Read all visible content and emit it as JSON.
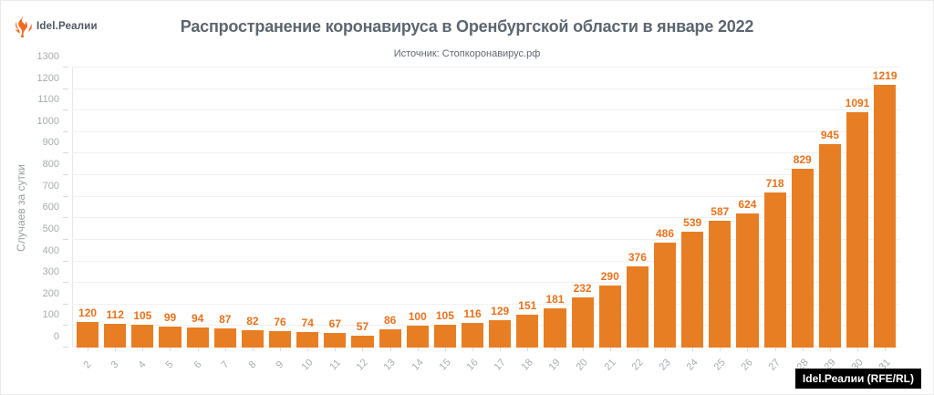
{
  "logo": {
    "text": "Idel.Реалии"
  },
  "header": {
    "title": "Распространение коронавируса в Оренбургской области в январе 2022",
    "subtitle": "Источник: Стопкоронавирус.рф"
  },
  "watermark": {
    "label": "Idel.Реалии (RFE/RL)"
  },
  "colors": {
    "bar": "#E87E24",
    "value_label": "#E8721C",
    "title_text": "#5C6670",
    "axis_text": "#A6ABB0",
    "gridline": "#F0F0F0",
    "logo_accent": "#F26A21",
    "watermark_bg": "#000000",
    "watermark_text": "#FFFFFF"
  },
  "chart_data": {
    "type": "bar",
    "title": "Распространение коронавируса в Оренбургской области в январе 2022",
    "subtitle": "Источник: Стопкоронавирус.рф",
    "xlabel": "",
    "ylabel": "Случаев за сутки",
    "ylim": [
      0,
      1300
    ],
    "ytick_step": 100,
    "grid": true,
    "legend_position": "none",
    "categories": [
      "2",
      "3",
      "4",
      "5",
      "6",
      "7",
      "8",
      "9",
      "10",
      "11",
      "12",
      "13",
      "14",
      "15",
      "16",
      "17",
      "18",
      "19",
      "20",
      "21",
      "22",
      "23",
      "24",
      "25",
      "26",
      "27",
      "28",
      "29",
      "30",
      "31"
    ],
    "values": [
      120,
      112,
      105,
      99,
      94,
      87,
      82,
      76,
      74,
      67,
      57,
      86,
      100,
      105,
      116,
      129,
      151,
      181,
      232,
      290,
      376,
      486,
      539,
      587,
      624,
      718,
      829,
      945,
      1091,
      1219
    ]
  }
}
